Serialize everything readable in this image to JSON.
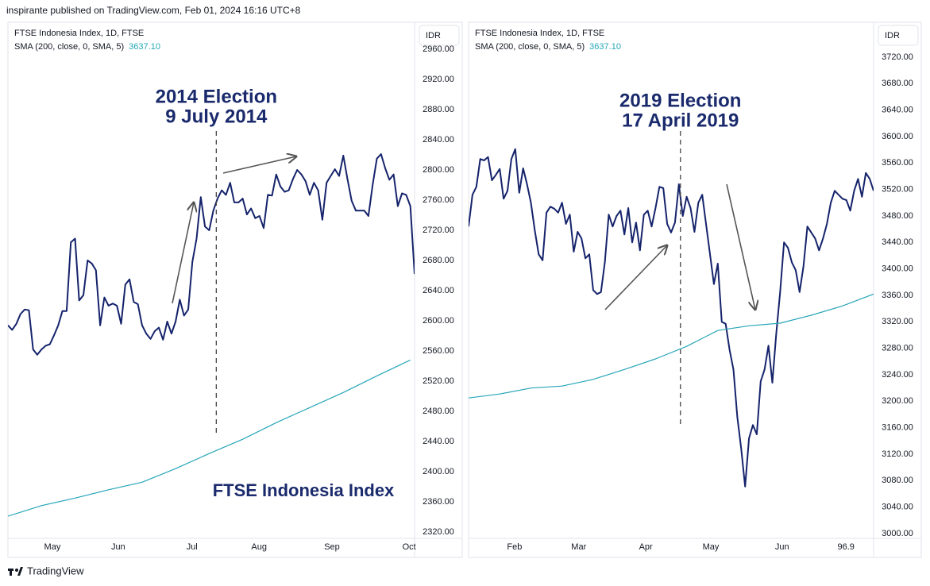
{
  "header": {
    "text": "inspirante published on TradingView.com, Feb 01, 2024 16:16 UTC+8"
  },
  "footer": {
    "brand": "TradingView"
  },
  "chart_data": [
    {
      "type": "line",
      "title": "FTSE Indonesia Index, 1D, FTSE",
      "indicator": "SMA (200, close, 0, SMA, 5)",
      "indicator_value": "3637.10",
      "currency": "IDR",
      "annotation": "FTSE Indonesia Index",
      "events": [
        {
          "x": 49.7,
          "label": [
            "2014 Election",
            "9 July 2014"
          ]
        }
      ],
      "xlim": [
        0,
        97
      ],
      "xticks": [
        {
          "value": 10.6,
          "label": "May"
        },
        {
          "value": 26.3,
          "label": "Jun"
        },
        {
          "value": 43.9,
          "label": "Jul"
        },
        {
          "value": 59.9,
          "label": "Aug"
        },
        {
          "value": 77.3,
          "label": "Sep"
        },
        {
          "value": 95.7,
          "label": "Oct"
        }
      ],
      "ylim": [
        2311.6,
        2995.8
      ],
      "yticks": [
        {
          "value": 2320,
          "label": "2320.00"
        },
        {
          "value": 2360,
          "label": "2360.00"
        },
        {
          "value": 2400,
          "label": "2400.00"
        },
        {
          "value": 2440,
          "label": "2440.00"
        },
        {
          "value": 2480,
          "label": "2480.00"
        },
        {
          "value": 2520,
          "label": "2520.00"
        },
        {
          "value": 2560,
          "label": "2560.00"
        },
        {
          "value": 2600,
          "label": "2600.00"
        },
        {
          "value": 2640,
          "label": "2640.00"
        },
        {
          "value": 2680,
          "label": "2680.00"
        },
        {
          "value": 2720,
          "label": "2720.00"
        },
        {
          "value": 2760,
          "label": "2760.00"
        },
        {
          "value": 2800,
          "label": "2800.00"
        },
        {
          "value": 2840,
          "label": "2840.00"
        },
        {
          "value": 2880,
          "label": "2880.00"
        },
        {
          "value": 2920,
          "label": "2920.00"
        },
        {
          "value": 2960,
          "label": "2960.00"
        }
      ],
      "series": [
        {
          "color": "#15236b",
          "values": [
            2594,
            2588,
            2596,
            2609,
            2615,
            2614,
            2562,
            2555,
            2562,
            2567,
            2569,
            2581,
            2594,
            2613,
            2613,
            2704,
            2709,
            2627,
            2634,
            2680,
            2676,
            2667,
            2594,
            2631,
            2620,
            2623,
            2620,
            2596,
            2648,
            2655,
            2625,
            2622,
            2594,
            2583,
            2576,
            2586,
            2591,
            2575,
            2599,
            2583,
            2599,
            2628,
            2607,
            2615,
            2678,
            2709,
            2764,
            2725,
            2720,
            2746,
            2762,
            2773,
            2767,
            2783,
            2757,
            2757,
            2762,
            2741,
            2749,
            2736,
            2739,
            2723,
            2767,
            2766,
            2794,
            2778,
            2771,
            2773,
            2788,
            2800,
            2794,
            2785,
            2767,
            2783,
            2773,
            2734,
            2783,
            2792,
            2801,
            2792,
            2819,
            2788,
            2759,
            2746,
            2746,
            2746,
            2739,
            2780,
            2815,
            2821,
            2802,
            2787,
            2794,
            2752,
            2769,
            2767,
            2752,
            2662
          ]
        },
        {
          "color": "#26a6b8",
          "x": [
            0,
            8,
            16,
            24,
            32,
            40,
            48,
            56,
            64,
            72,
            80,
            88,
            96
          ],
          "values": [
            2341,
            2355,
            2365,
            2376,
            2386,
            2404,
            2424,
            2443,
            2465,
            2485,
            2505,
            2527,
            2548
          ]
        }
      ]
    },
    {
      "type": "line",
      "title": "FTSE Indonesia Index, 1D, FTSE",
      "indicator": "SMA (200, close, 0, SMA, 5)",
      "indicator_value": "3637.10",
      "currency": "IDR",
      "events": [
        {
          "x": 54.4,
          "label": [
            "2019 Election",
            "17 April 2019"
          ]
        }
      ],
      "xlim": [
        0,
        104
      ],
      "xticks": [
        {
          "value": 11.8,
          "label": "Feb"
        },
        {
          "value": 28.3,
          "label": "Mar"
        },
        {
          "value": 45.5,
          "label": "Apr"
        },
        {
          "value": 62.2,
          "label": "May"
        },
        {
          "value": 80.5,
          "label": "Jun"
        },
        96.9
      ],
      "ylim": [
        2992.8,
        3772.8
      ],
      "yticks": [
        {
          "value": 3000,
          "label": "3000.00"
        },
        {
          "value": 3040,
          "label": "3040.00"
        },
        {
          "value": 3080,
          "label": "3080.00"
        },
        {
          "value": 3120,
          "label": "3120.00"
        },
        {
          "value": 3160,
          "label": "3160.00"
        },
        {
          "value": 3200,
          "label": "3200.00"
        },
        {
          "value": 3240,
          "label": "3240.00"
        },
        {
          "value": 3280,
          "label": "3280.00"
        },
        {
          "value": 3320,
          "label": "3320.00"
        },
        {
          "value": 3360,
          "label": "3360.00"
        },
        {
          "value": 3400,
          "label": "3400.00"
        },
        {
          "value": 3440,
          "label": "3440.00"
        },
        {
          "value": 3480,
          "label": "3480.00"
        },
        {
          "value": 3520,
          "label": "3520.00"
        },
        {
          "value": 3560,
          "label": "3560.00"
        },
        {
          "value": 3600,
          "label": "3600.00"
        },
        {
          "value": 3640,
          "label": "3640.00"
        },
        {
          "value": 3680,
          "label": "3680.00"
        },
        {
          "value": 3720,
          "label": "3720.00"
        }
      ],
      "series": [
        {
          "color": "#15236b",
          "values": [
            3464,
            3512,
            3524,
            3566,
            3564,
            3569,
            3534,
            3542,
            3551,
            3506,
            3518,
            3566,
            3581,
            3515,
            3552,
            3528,
            3500,
            3458,
            3422,
            3413,
            3485,
            3494,
            3491,
            3485,
            3500,
            3468,
            3482,
            3426,
            3456,
            3446,
            3416,
            3422,
            3368,
            3362,
            3365,
            3410,
            3482,
            3464,
            3480,
            3488,
            3452,
            3492,
            3440,
            3470,
            3428,
            3482,
            3488,
            3464,
            3492,
            3524,
            3522,
            3468,
            3455,
            3470,
            3528,
            3480,
            3509,
            3492,
            3456,
            3500,
            3512,
            3467,
            3422,
            3377,
            3408,
            3320,
            3317,
            3278,
            3248,
            3176,
            3128,
            3071,
            3144,
            3164,
            3150,
            3230,
            3248,
            3284,
            3228,
            3302,
            3365,
            3440,
            3432,
            3410,
            3398,
            3365,
            3404,
            3464,
            3455,
            3446,
            3428,
            3446,
            3468,
            3500,
            3518,
            3512,
            3506,
            3504,
            3488,
            3518,
            3536,
            3509,
            3545,
            3536,
            3518
          ]
        },
        {
          "color": "#26a6b8",
          "x": [
            0,
            8,
            16,
            24,
            32,
            40,
            48,
            56,
            64,
            72,
            80,
            88,
            96,
            104
          ],
          "values": [
            3205,
            3211,
            3220,
            3223,
            3233,
            3248,
            3264,
            3283,
            3307,
            3314,
            3318,
            3330,
            3344,
            3362
          ]
        }
      ]
    }
  ]
}
